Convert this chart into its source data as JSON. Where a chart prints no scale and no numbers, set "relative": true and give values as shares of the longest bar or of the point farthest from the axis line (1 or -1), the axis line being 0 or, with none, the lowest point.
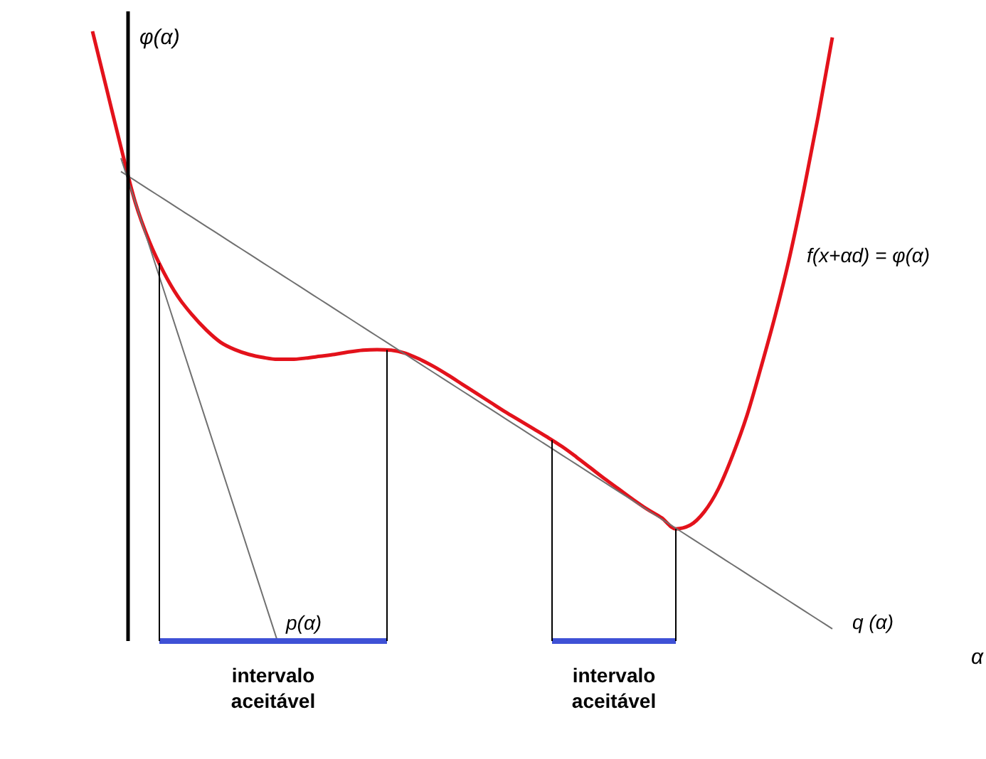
{
  "chart_data": {
    "type": "line",
    "ylabel": "φ(α)",
    "relative": true,
    "categories": [
      null,
      null,
      null,
      null,
      null,
      null,
      null,
      null,
      null,
      null,
      null,
      null,
      null,
      null,
      null,
      null,
      null,
      null,
      null,
      null,
      null,
      null,
      null,
      null,
      null,
      null,
      null,
      null,
      null,
      null,
      null,
      null,
      null,
      null,
      null,
      null,
      null,
      null,
      null,
      null,
      null,
      null,
      null,
      null,
      null,
      null,
      null,
      null,
      null,
      null,
      null,
      null,
      null
    ],
    "series": [
      {
        "name": "f(x+αd) = φ(α)",
        "color": "#e3121b",
        "values": [
          1.0,
          0.905,
          0.81,
          0.72,
          0.655,
          0.605,
          0.565,
          0.535,
          0.51,
          0.49,
          0.478,
          0.47,
          0.465,
          0.462,
          0.462,
          0.464,
          0.467,
          0.47,
          0.474,
          0.477,
          0.478,
          0.477,
          0.472,
          0.462,
          0.45,
          0.436,
          0.421,
          0.406,
          0.391,
          0.376,
          0.362,
          0.348,
          0.334,
          0.319,
          0.302,
          0.284,
          0.266,
          0.249,
          0.232,
          0.216,
          0.202,
          0.184,
          0.19,
          0.212,
          0.25,
          0.305,
          0.37,
          0.45,
          0.535,
          0.63,
          0.74,
          0.86,
          0.99
        ]
      },
      {
        "name": "p(α)",
        "color": "#707070",
        "values": [
          null,
          null,
          0.792,
          0.72,
          0.648,
          0.576,
          0.504,
          0.432,
          0.36,
          0.288,
          0.216,
          0.144,
          0.072,
          0.0,
          null,
          null,
          null,
          null,
          null,
          null,
          null,
          null,
          null,
          null,
          null,
          null,
          null,
          null,
          null,
          null,
          null,
          null,
          null,
          null,
          null,
          null,
          null,
          null,
          null,
          null,
          null,
          null,
          null,
          null,
          null,
          null,
          null,
          null,
          null,
          null,
          null,
          null,
          null
        ]
      },
      {
        "name": "q (α)",
        "color": "#707070",
        "values": [
          null,
          null,
          0.77,
          0.755,
          0.74,
          0.725,
          0.71,
          0.695,
          0.68,
          0.665,
          0.65,
          0.635,
          0.62,
          0.605,
          0.59,
          0.575,
          0.56,
          0.545,
          0.53,
          0.515,
          0.5,
          0.485,
          0.47,
          0.455,
          0.44,
          0.425,
          0.41,
          0.395,
          0.38,
          0.365,
          0.35,
          0.335,
          0.32,
          0.305,
          0.29,
          0.275,
          0.26,
          0.245,
          0.23,
          0.215,
          0.2,
          0.185,
          0.17,
          0.155,
          0.14,
          0.125,
          0.11,
          0.095,
          0.08,
          0.065,
          0.05,
          0.035,
          0.02
        ]
      }
    ],
    "annotations": [
      "intervalo aceitável",
      "intervalo aceitável",
      "α"
    ]
  }
}
